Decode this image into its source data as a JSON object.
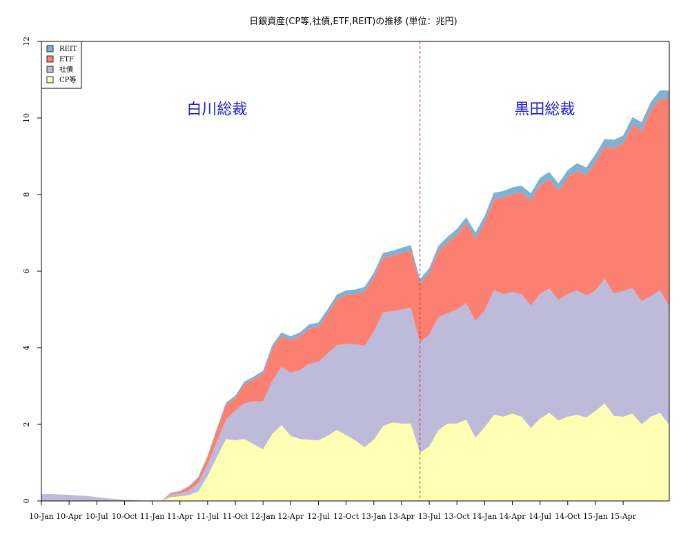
{
  "chart_data": {
    "type": "area",
    "stacked": true,
    "title": "日銀資産(CP等,社債,ETF,REIT)の推移 (単位：兆円)",
    "xlabel": "",
    "ylabel": "",
    "ylim": [
      0,
      12
    ],
    "yticks": [
      0,
      2,
      4,
      6,
      8,
      10,
      12
    ],
    "x_tick_labels": [
      "10-Jan",
      "10-Apr",
      "10-Jul",
      "10-Oct",
      "11-Jan",
      "11-Apr",
      "11-Jul",
      "11-Oct",
      "12-Jan",
      "12-Apr",
      "12-Jul",
      "12-Oct",
      "13-Jan",
      "13-Apr",
      "13-Jul",
      "13-Oct",
      "14-Jan",
      "14-Apr",
      "14-Jul",
      "14-Oct",
      "15-Jan",
      "15-Apr"
    ],
    "legend_position": "top-left",
    "series": [
      {
        "name": "CP等",
        "color": "#ffffb3",
        "values": [
          0,
          0,
          0,
          0,
          0,
          0,
          0,
          0,
          0,
          0,
          0,
          0,
          0,
          0,
          0.1,
          0.12,
          0.15,
          0.25,
          0.65,
          1.15,
          1.62,
          1.58,
          1.62,
          1.48,
          1.35,
          1.75,
          1.98,
          1.7,
          1.62,
          1.6,
          1.58,
          1.7,
          1.85,
          1.72,
          1.58,
          1.4,
          1.6,
          1.95,
          2.05,
          2.02,
          2.02,
          1.26,
          1.42,
          1.85,
          2.02,
          2.02,
          2.12,
          1.65,
          1.92,
          2.25,
          2.2,
          2.28,
          2.2,
          1.9,
          2.15,
          2.3,
          2.1,
          2.2,
          2.25,
          2.18,
          2.35,
          2.55,
          2.22,
          2.2,
          2.28,
          2.0,
          2.2,
          2.3,
          1.98
        ]
      },
      {
        "name": "社債",
        "color": "#bebada",
        "values": [
          0.18,
          0.18,
          0.17,
          0.16,
          0.14,
          0.13,
          0.1,
          0.07,
          0.05,
          0.03,
          0.02,
          0.01,
          0,
          0,
          0.06,
          0.08,
          0.12,
          0.22,
          0.3,
          0.4,
          0.5,
          0.78,
          0.93,
          1.12,
          1.25,
          1.38,
          1.52,
          1.65,
          1.8,
          1.98,
          2.05,
          2.15,
          2.22,
          2.38,
          2.52,
          2.65,
          2.82,
          2.98,
          2.9,
          2.98,
          3.03,
          2.88,
          2.92,
          2.95,
          2.88,
          2.98,
          3.05,
          3.05,
          3.05,
          3.25,
          3.2,
          3.18,
          3.2,
          3.2,
          3.25,
          3.25,
          3.15,
          3.2,
          3.25,
          3.18,
          3.15,
          3.25,
          3.2,
          3.28,
          3.28,
          3.22,
          3.15,
          3.2,
          3.1
        ]
      },
      {
        "name": "ETF",
        "color": "#fb8072",
        "values": [
          0,
          0,
          0,
          0,
          0,
          0,
          0,
          0,
          0,
          0,
          0,
          0,
          0,
          0,
          0.04,
          0.05,
          0.1,
          0.13,
          0.2,
          0.3,
          0.4,
          0.33,
          0.5,
          0.58,
          0.72,
          0.85,
          0.8,
          0.85,
          0.88,
          0.92,
          0.92,
          1.05,
          1.2,
          1.28,
          1.3,
          1.42,
          1.42,
          1.42,
          1.45,
          1.48,
          1.5,
          1.52,
          1.6,
          1.72,
          1.85,
          1.95,
          2.08,
          2.15,
          2.3,
          2.38,
          2.52,
          2.55,
          2.65,
          2.75,
          2.85,
          2.85,
          2.85,
          3.05,
          3.12,
          3.15,
          3.35,
          3.45,
          3.8,
          3.85,
          4.25,
          4.45,
          4.85,
          5.0,
          5.42
        ]
      },
      {
        "name": "REIT",
        "color": "#80b1d3",
        "values": [
          0,
          0,
          0,
          0,
          0,
          0,
          0,
          0,
          0,
          0,
          0,
          0,
          0,
          0,
          0.01,
          0.01,
          0.02,
          0.03,
          0.03,
          0.04,
          0.05,
          0.06,
          0.07,
          0.07,
          0.08,
          0.09,
          0.1,
          0.1,
          0.1,
          0.11,
          0.11,
          0.11,
          0.12,
          0.12,
          0.12,
          0.12,
          0.12,
          0.13,
          0.13,
          0.13,
          0.13,
          0.13,
          0.14,
          0.14,
          0.15,
          0.15,
          0.16,
          0.16,
          0.17,
          0.17,
          0.17,
          0.18,
          0.18,
          0.18,
          0.19,
          0.19,
          0.19,
          0.19,
          0.2,
          0.2,
          0.2,
          0.2,
          0.21,
          0.21,
          0.21,
          0.22,
          0.22,
          0.22,
          0.22
        ]
      }
    ],
    "annotations": [
      {
        "text": "白川総裁"
      },
      {
        "text": "黒田総裁"
      }
    ],
    "vline_after_index": 41
  }
}
